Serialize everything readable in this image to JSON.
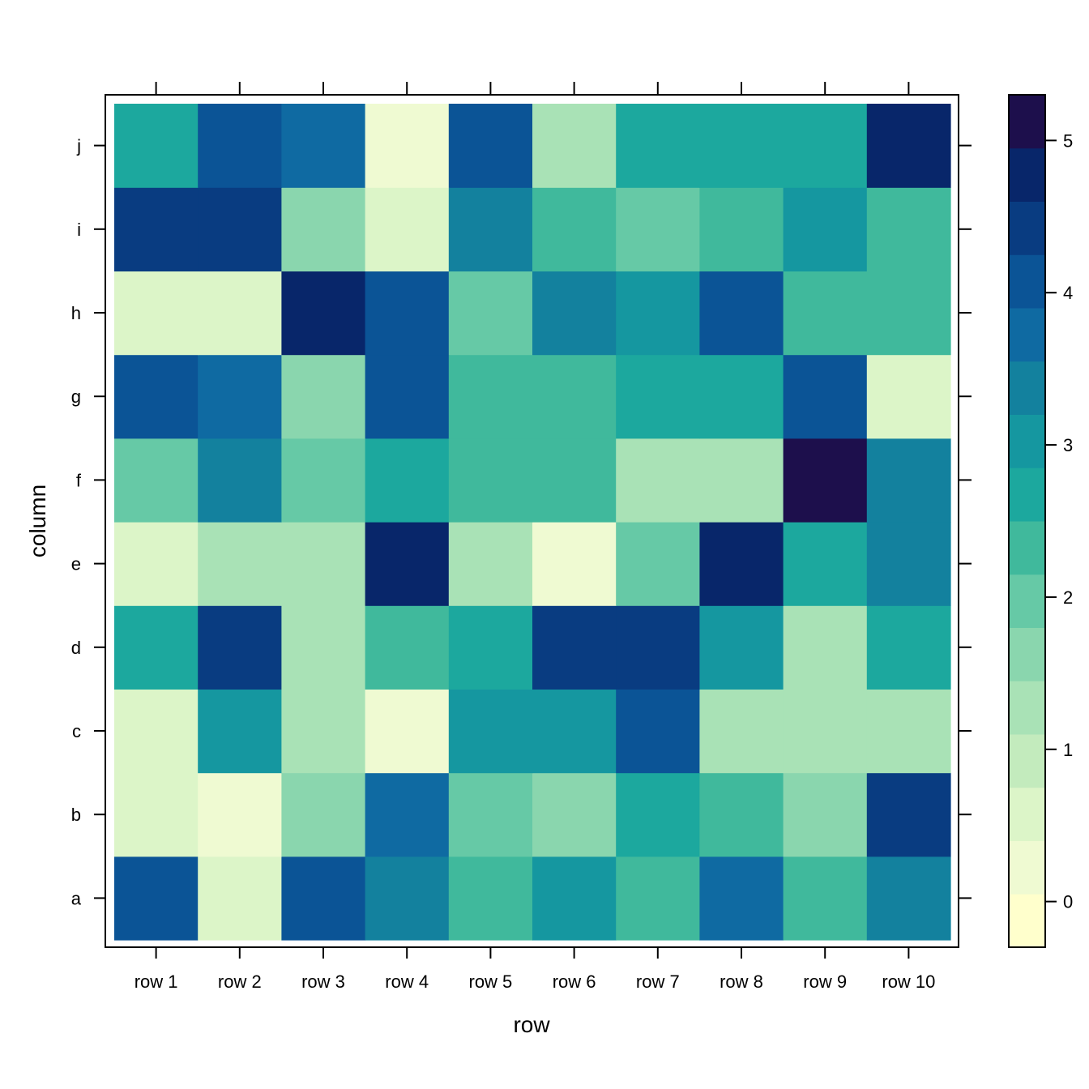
{
  "chart_data": {
    "type": "heatmap",
    "title": "",
    "xlabel": "row",
    "ylabel": "column",
    "x_categories": [
      "row 1",
      "row 2",
      "row 3",
      "row 4",
      "row 5",
      "row 6",
      "row 7",
      "row 8",
      "row 9",
      "row 10"
    ],
    "y_categories": [
      "a",
      "b",
      "c",
      "d",
      "e",
      "f",
      "g",
      "h",
      "i",
      "j"
    ],
    "values": [
      [
        3.9,
        0.7,
        4.0,
        3.4,
        2.4,
        3.0,
        2.4,
        3.8,
        2.4,
        3.4
      ],
      [
        0.4,
        0.3,
        1.6,
        3.7,
        1.9,
        1.5,
        2.6,
        2.4,
        1.5,
        4.4
      ],
      [
        0.4,
        2.9,
        1.3,
        0.3,
        3.0,
        3.0,
        4.0,
        1.3,
        1.1,
        1.3
      ],
      [
        2.7,
        4.4,
        1.1,
        2.3,
        2.7,
        4.4,
        4.4,
        2.9,
        1.3,
        2.7
      ],
      [
        0.4,
        1.3,
        1.3,
        4.6,
        1.1,
        0.3,
        2.0,
        4.6,
        2.7,
        3.4
      ],
      [
        2.0,
        3.4,
        2.0,
        2.7,
        2.3,
        2.3,
        1.3,
        1.3,
        5.2,
        3.4
      ],
      [
        4.0,
        3.7,
        1.6,
        4.0,
        2.3,
        2.3,
        2.6,
        2.6,
        4.0,
        0.7
      ],
      [
        0.7,
        0.7,
        4.7,
        4.0,
        2.0,
        3.4,
        2.9,
        4.0,
        2.3,
        2.3
      ],
      [
        4.4,
        4.4,
        1.6,
        0.4,
        3.2,
        2.3,
        2.0,
        2.3,
        3.0,
        2.3
      ],
      [
        2.5,
        4.0,
        3.7,
        0.1,
        4.0,
        1.3,
        2.6,
        2.8,
        2.6,
        4.6
      ]
    ],
    "colorbar": {
      "ticks": [
        "0",
        "1",
        "2",
        "3",
        "4",
        "5"
      ],
      "range": [
        -0.3,
        5.3
      ],
      "breaks": [
        -0.3,
        0.05,
        0.4,
        0.75,
        1.1,
        1.45,
        1.8,
        2.15,
        2.5,
        2.85,
        3.2,
        3.55,
        3.9,
        4.25,
        4.6,
        4.95,
        5.3
      ],
      "colors": [
        "#ffffcc",
        "#effad2",
        "#dcf5c8",
        "#c3ebbd",
        "#a9e2b6",
        "#8ad6ae",
        "#66c9a6",
        "#40b99c",
        "#1ca89e",
        "#1597a0",
        "#13819e",
        "#0f6aa2",
        "#0b5496",
        "#093c81",
        "#08266a",
        "#1d0f4c"
      ]
    },
    "grid": false,
    "legend": "right"
  }
}
